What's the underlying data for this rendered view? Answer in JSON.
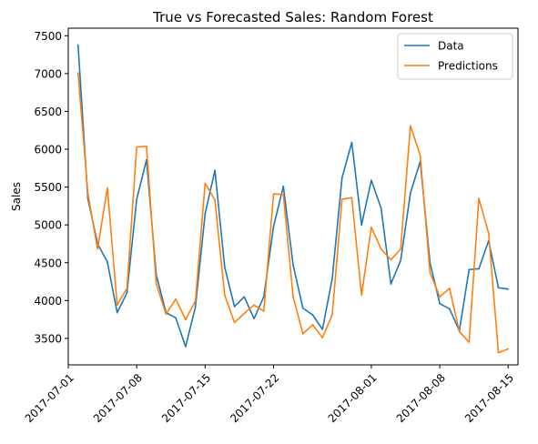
{
  "chart_data": {
    "type": "line",
    "title": "True vs Forecasted Sales: Random Forest",
    "xlabel": "",
    "ylabel": "Sales",
    "x_start": "2017-07-02",
    "x_end": "2017-08-15",
    "xlim": [
      "2017-07-01",
      "2017-08-16"
    ],
    "ylim": [
      3150,
      7600
    ],
    "x_ticks": [
      "2017-07-01",
      "2017-07-08",
      "2017-07-15",
      "2017-07-22",
      "2017-08-01",
      "2017-08-08",
      "2017-08-15"
    ],
    "y_ticks": [
      3500,
      4000,
      4500,
      5000,
      5500,
      6000,
      6500,
      7000,
      7500
    ],
    "legend_position": "top-right",
    "grid": false,
    "series": [
      {
        "name": "Data",
        "color": "#1f77b4",
        "values": [
          7380,
          5350,
          4750,
          4510,
          3840,
          4100,
          5340,
          5860,
          4340,
          3840,
          3770,
          3390,
          3910,
          5150,
          5720,
          4440,
          3920,
          4050,
          3760,
          4050,
          4980,
          5510,
          4470,
          3900,
          3810,
          3620,
          4290,
          5620,
          6090,
          5000,
          5590,
          5220,
          4220,
          4530,
          5420,
          5840,
          4500,
          3960,
          3890,
          3600,
          4410,
          4420,
          4790,
          4170,
          4150
        ]
      },
      {
        "name": "Predictions",
        "color": "#ff7f0e",
        "values": [
          7010,
          5420,
          4680,
          5490,
          3940,
          4160,
          6030,
          6040,
          4220,
          3820,
          4020,
          3750,
          3990,
          5550,
          5330,
          4070,
          3710,
          3830,
          3940,
          3860,
          5410,
          5400,
          4050,
          3560,
          3680,
          3510,
          3810,
          5340,
          5360,
          4070,
          4970,
          4680,
          4540,
          4680,
          6310,
          5920,
          4370,
          4050,
          4160,
          3590,
          3450,
          5350,
          4890,
          3310,
          3360
        ]
      }
    ]
  }
}
